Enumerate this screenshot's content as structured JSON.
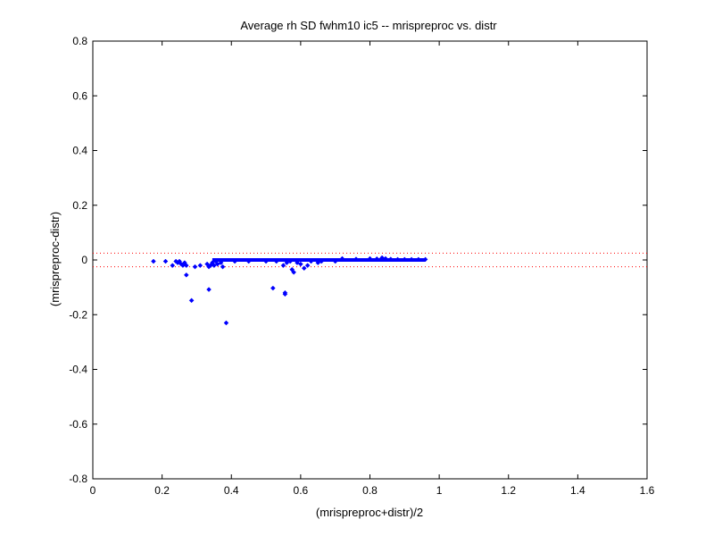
{
  "chart_data": {
    "type": "scatter",
    "title": "Average rh SD fwhm10 ic5 -- mrispreproc vs. distr",
    "xlabel": "(mrispreproc+distr)/2",
    "ylabel": "(mrispreproc-distr)",
    "xlim": [
      0,
      1.6
    ],
    "ylim": [
      -0.8,
      0.8
    ],
    "xticks": [
      0,
      0.2,
      0.4,
      0.6,
      0.8,
      1,
      1.2,
      1.4,
      1.6
    ],
    "xtick_labels": [
      "0",
      "0.2",
      "0.4",
      "0.6",
      "0.8",
      "1",
      "1.2",
      "1.4",
      "1.6"
    ],
    "yticks": [
      -0.8,
      -0.6,
      -0.4,
      -0.2,
      0,
      0.2,
      0.4,
      0.6,
      0.8
    ],
    "ytick_labels": [
      "-0.8",
      "-0.6",
      "-0.4",
      "-0.2",
      "0",
      "0.2",
      "0.4",
      "0.6",
      "0.8"
    ],
    "grid": false,
    "marker_color": "#0000ff",
    "reference_line_color": "#ff0000",
    "reference_lines_y": [
      0.025,
      -0.025
    ],
    "band": {
      "x_start": 0.345,
      "x_end": 0.96,
      "y": 0
    },
    "points": [
      [
        0.175,
        -0.005
      ],
      [
        0.21,
        -0.005
      ],
      [
        0.23,
        -0.02
      ],
      [
        0.24,
        -0.005
      ],
      [
        0.245,
        -0.01
      ],
      [
        0.25,
        -0.005
      ],
      [
        0.255,
        -0.015
      ],
      [
        0.26,
        -0.02
      ],
      [
        0.265,
        -0.01
      ],
      [
        0.27,
        -0.02
      ],
      [
        0.27,
        -0.055
      ],
      [
        0.285,
        -0.148
      ],
      [
        0.295,
        -0.025
      ],
      [
        0.31,
        -0.02
      ],
      [
        0.33,
        -0.015
      ],
      [
        0.335,
        -0.025
      ],
      [
        0.34,
        -0.02
      ],
      [
        0.335,
        -0.108
      ],
      [
        0.345,
        -0.01
      ],
      [
        0.35,
        -0.02
      ],
      [
        0.355,
        -0.005
      ],
      [
        0.36,
        -0.015
      ],
      [
        0.37,
        -0.01
      ],
      [
        0.375,
        -0.025
      ],
      [
        0.385,
        -0.23
      ],
      [
        0.41,
        -0.005
      ],
      [
        0.45,
        -0.005
      ],
      [
        0.5,
        -0.005
      ],
      [
        0.52,
        -0.103
      ],
      [
        0.53,
        -0.005
      ],
      [
        0.55,
        -0.02
      ],
      [
        0.555,
        -0.12
      ],
      [
        0.555,
        -0.125
      ],
      [
        0.56,
        -0.01
      ],
      [
        0.57,
        -0.005
      ],
      [
        0.575,
        -0.035
      ],
      [
        0.58,
        -0.045
      ],
      [
        0.59,
        -0.01
      ],
      [
        0.6,
        -0.015
      ],
      [
        0.61,
        -0.03
      ],
      [
        0.62,
        -0.02
      ],
      [
        0.63,
        -0.005
      ],
      [
        0.65,
        -0.01
      ],
      [
        0.66,
        -0.005
      ],
      [
        0.7,
        -0.005
      ],
      [
        0.72,
        0.005
      ],
      [
        0.76,
        0.003
      ],
      [
        0.8,
        0.005
      ],
      [
        0.82,
        0.004
      ],
      [
        0.835,
        0.008
      ],
      [
        0.845,
        0.005
      ],
      [
        0.86,
        0.003
      ],
      [
        0.88,
        0.002
      ],
      [
        0.9,
        0.002
      ],
      [
        0.92,
        0.002
      ],
      [
        0.94,
        0.002
      ],
      [
        0.96,
        0.002
      ]
    ]
  }
}
